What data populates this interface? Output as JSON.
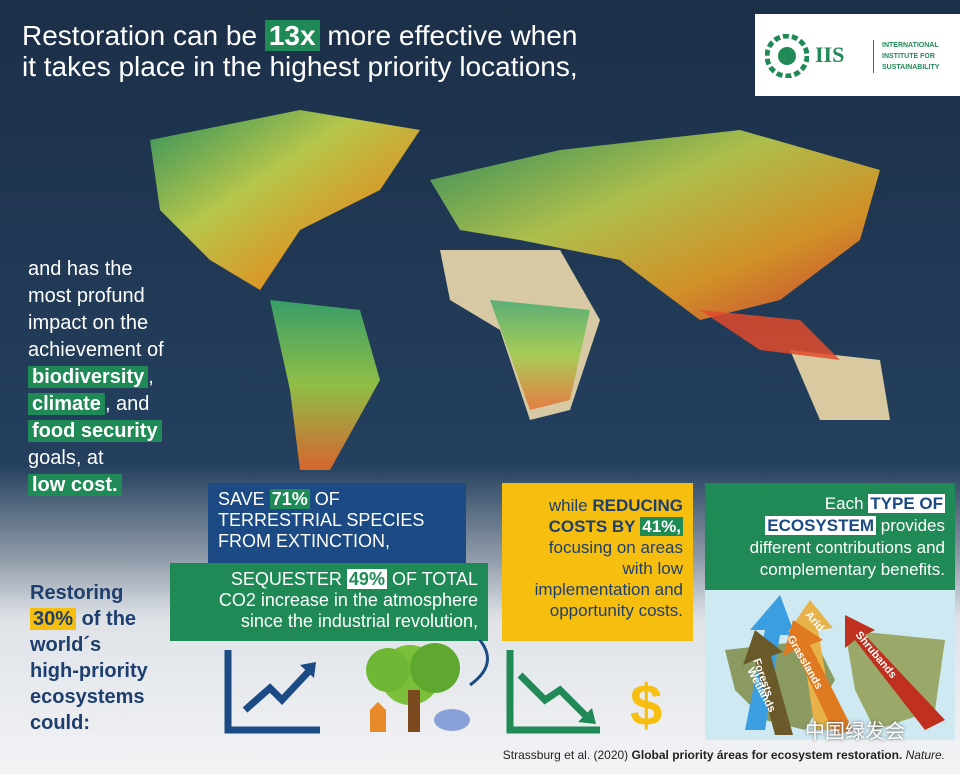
{
  "headline": {
    "before": "Restoration can be",
    "highlight": "13x",
    "after": "more effective when",
    "line2": "it takes place in the highest priority locations,"
  },
  "logo": {
    "initials": "IIS",
    "name_lines": [
      "INTERNATIONAL",
      "INSTITUTE FOR",
      "SUSTAINABILITY"
    ]
  },
  "impact": {
    "intro_lines": [
      "and has the",
      "most profund",
      "impact on the",
      "achievement of"
    ],
    "goal1": "biodiversity",
    "sep1": ",",
    "goal2": "climate",
    "sep2": ", and",
    "goal3": "food security",
    "outro": "goals, at",
    "cost": "low cost."
  },
  "restoring": {
    "line1": "Restoring",
    "percent": "30%",
    "rest": "of the",
    "lines": [
      "world´s",
      "high-priority",
      "ecosystems",
      "could:"
    ]
  },
  "species_box": {
    "before": "SAVE",
    "highlight": "71%",
    "after": "OF",
    "lines": [
      "TERRESTRIAL SPECIES",
      "FROM EXTINCTION,"
    ]
  },
  "carbon_box": {
    "before": "SEQUESTER",
    "highlight": "49%",
    "after": "OF TOTAL",
    "lines": [
      "CO2 increase in the atmosphere",
      "since the industrial revolution,"
    ]
  },
  "cost_box": {
    "before": "while",
    "bold": "REDUCING",
    "bold2": "COSTS BY",
    "highlight": "41%,",
    "lines": [
      "focusing on areas",
      "with low",
      "implementation and",
      "opportunity costs."
    ]
  },
  "ecosystem_box": {
    "before": "Each",
    "highlight1": "TYPE OF",
    "highlight2": "ECOSYSTEM",
    "after": "provides",
    "lines": [
      "different contributions and",
      "complementary benefits."
    ]
  },
  "arrows": [
    "Wetlands",
    "Forests",
    "Arid",
    "Grasslands",
    "Shrubands"
  ],
  "icon_dollar": "$",
  "watermark": "中国绿发会",
  "citation": {
    "authors": "Strassburg et al. (2020)",
    "title": "Global priority áreas for ecosystem restoration.",
    "journal": "Nature."
  }
}
